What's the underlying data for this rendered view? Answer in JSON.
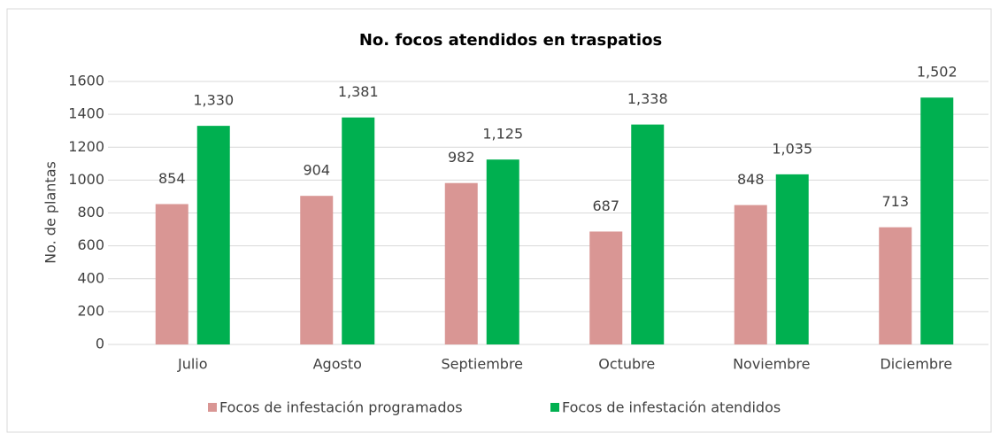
{
  "chart_data": {
    "type": "bar",
    "title": "No. focos atendidos en traspatios",
    "y_label": "No. de  plantas",
    "categories": [
      "Julio",
      "Agosto",
      "Septiembre",
      "Octubre",
      "Noviembre",
      "Diciembre"
    ],
    "series": [
      {
        "name": "Focos de infestación programados",
        "color": "#d99694",
        "values": [
          854,
          904,
          982,
          687,
          848,
          713
        ]
      },
      {
        "name": "Focos de infestación atendidos",
        "color": "#00b050",
        "values": [
          1330,
          1381,
          1125,
          1338,
          1035,
          1502
        ],
        "value_labels": [
          "1,330",
          "1,381",
          "1,125",
          "1,338",
          "1,035",
          "1,502"
        ]
      }
    ],
    "ylim": [
      0,
      1600
    ],
    "yticks": [
      0,
      200,
      400,
      600,
      800,
      1000,
      1200,
      1400,
      1600
    ],
    "grid": true,
    "legend": "bottom"
  }
}
